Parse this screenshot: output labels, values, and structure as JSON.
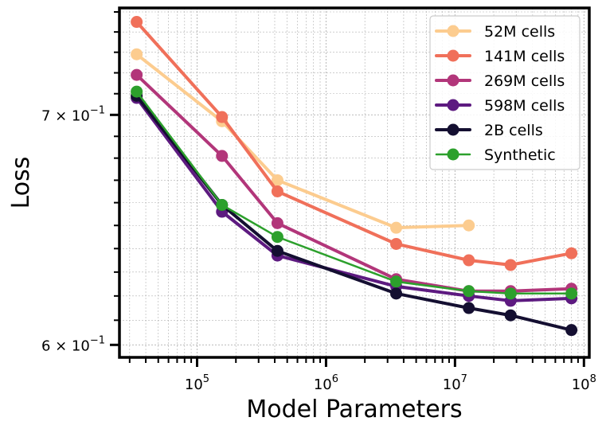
{
  "chart_data": {
    "type": "line",
    "title": "",
    "xlabel": "Model Parameters",
    "ylabel": "Loss",
    "xscale": "log",
    "yscale": "log",
    "xlim": [
      25000,
      110000000
    ],
    "ylim": [
      0.595,
      0.752
    ],
    "grid": true,
    "legend_position": "top-right",
    "x_tick_labels": [
      {
        "value": 100000,
        "base": "10",
        "exp": "5"
      },
      {
        "value": 1000000,
        "base": "10",
        "exp": "6"
      },
      {
        "value": 10000000,
        "base": "10",
        "exp": "7"
      },
      {
        "value": 100000000,
        "base": "10",
        "exp": "8"
      }
    ],
    "y_tick_labels": [
      {
        "value": 0.7,
        "prefix": "7 × 10",
        "exp": "−1"
      },
      {
        "value": 0.6,
        "prefix": "6 × 10",
        "exp": "−1"
      }
    ],
    "series": [
      {
        "name": "52M cells",
        "color": "#fccc8f",
        "width": 4,
        "x": [
          34000,
          156000,
          420000,
          3500000,
          12800000
        ],
        "y": [
          0.729,
          0.697,
          0.67,
          0.649,
          0.65
        ]
      },
      {
        "name": "141M cells",
        "color": "#f0705a",
        "width": 4,
        "x": [
          34000,
          156000,
          420000,
          3500000,
          12800000,
          27000000,
          80000000
        ],
        "y": [
          0.745,
          0.699,
          0.665,
          0.642,
          0.635,
          0.633,
          0.638
        ]
      },
      {
        "name": "269M cells",
        "color": "#b2367a",
        "width": 4,
        "x": [
          34000,
          156000,
          420000,
          3500000,
          12800000,
          27000000,
          80000000
        ],
        "y": [
          0.719,
          0.681,
          0.651,
          0.627,
          0.622,
          0.622,
          0.623
        ]
      },
      {
        "name": "598M cells",
        "color": "#5d1a80",
        "width": 4,
        "x": [
          34000,
          156000,
          420000,
          3500000,
          12800000,
          27000000,
          80000000
        ],
        "y": [
          0.708,
          0.656,
          0.637,
          0.624,
          0.62,
          0.618,
          0.619
        ]
      },
      {
        "name": "2B cells",
        "color": "#140f31",
        "width": 4,
        "x": [
          34000,
          156000,
          420000,
          3500000,
          12800000,
          27000000,
          80000000
        ],
        "y": [
          0.709,
          0.659,
          0.639,
          0.621,
          0.615,
          0.612,
          0.606
        ]
      },
      {
        "name": "Synthetic",
        "color": "#2ca02c",
        "width": 2.5,
        "x": [
          34000,
          156000,
          420000,
          3500000,
          12800000,
          27000000,
          80000000
        ],
        "y": [
          0.711,
          0.659,
          0.645,
          0.626,
          0.622,
          0.621,
          0.621
        ]
      }
    ]
  }
}
